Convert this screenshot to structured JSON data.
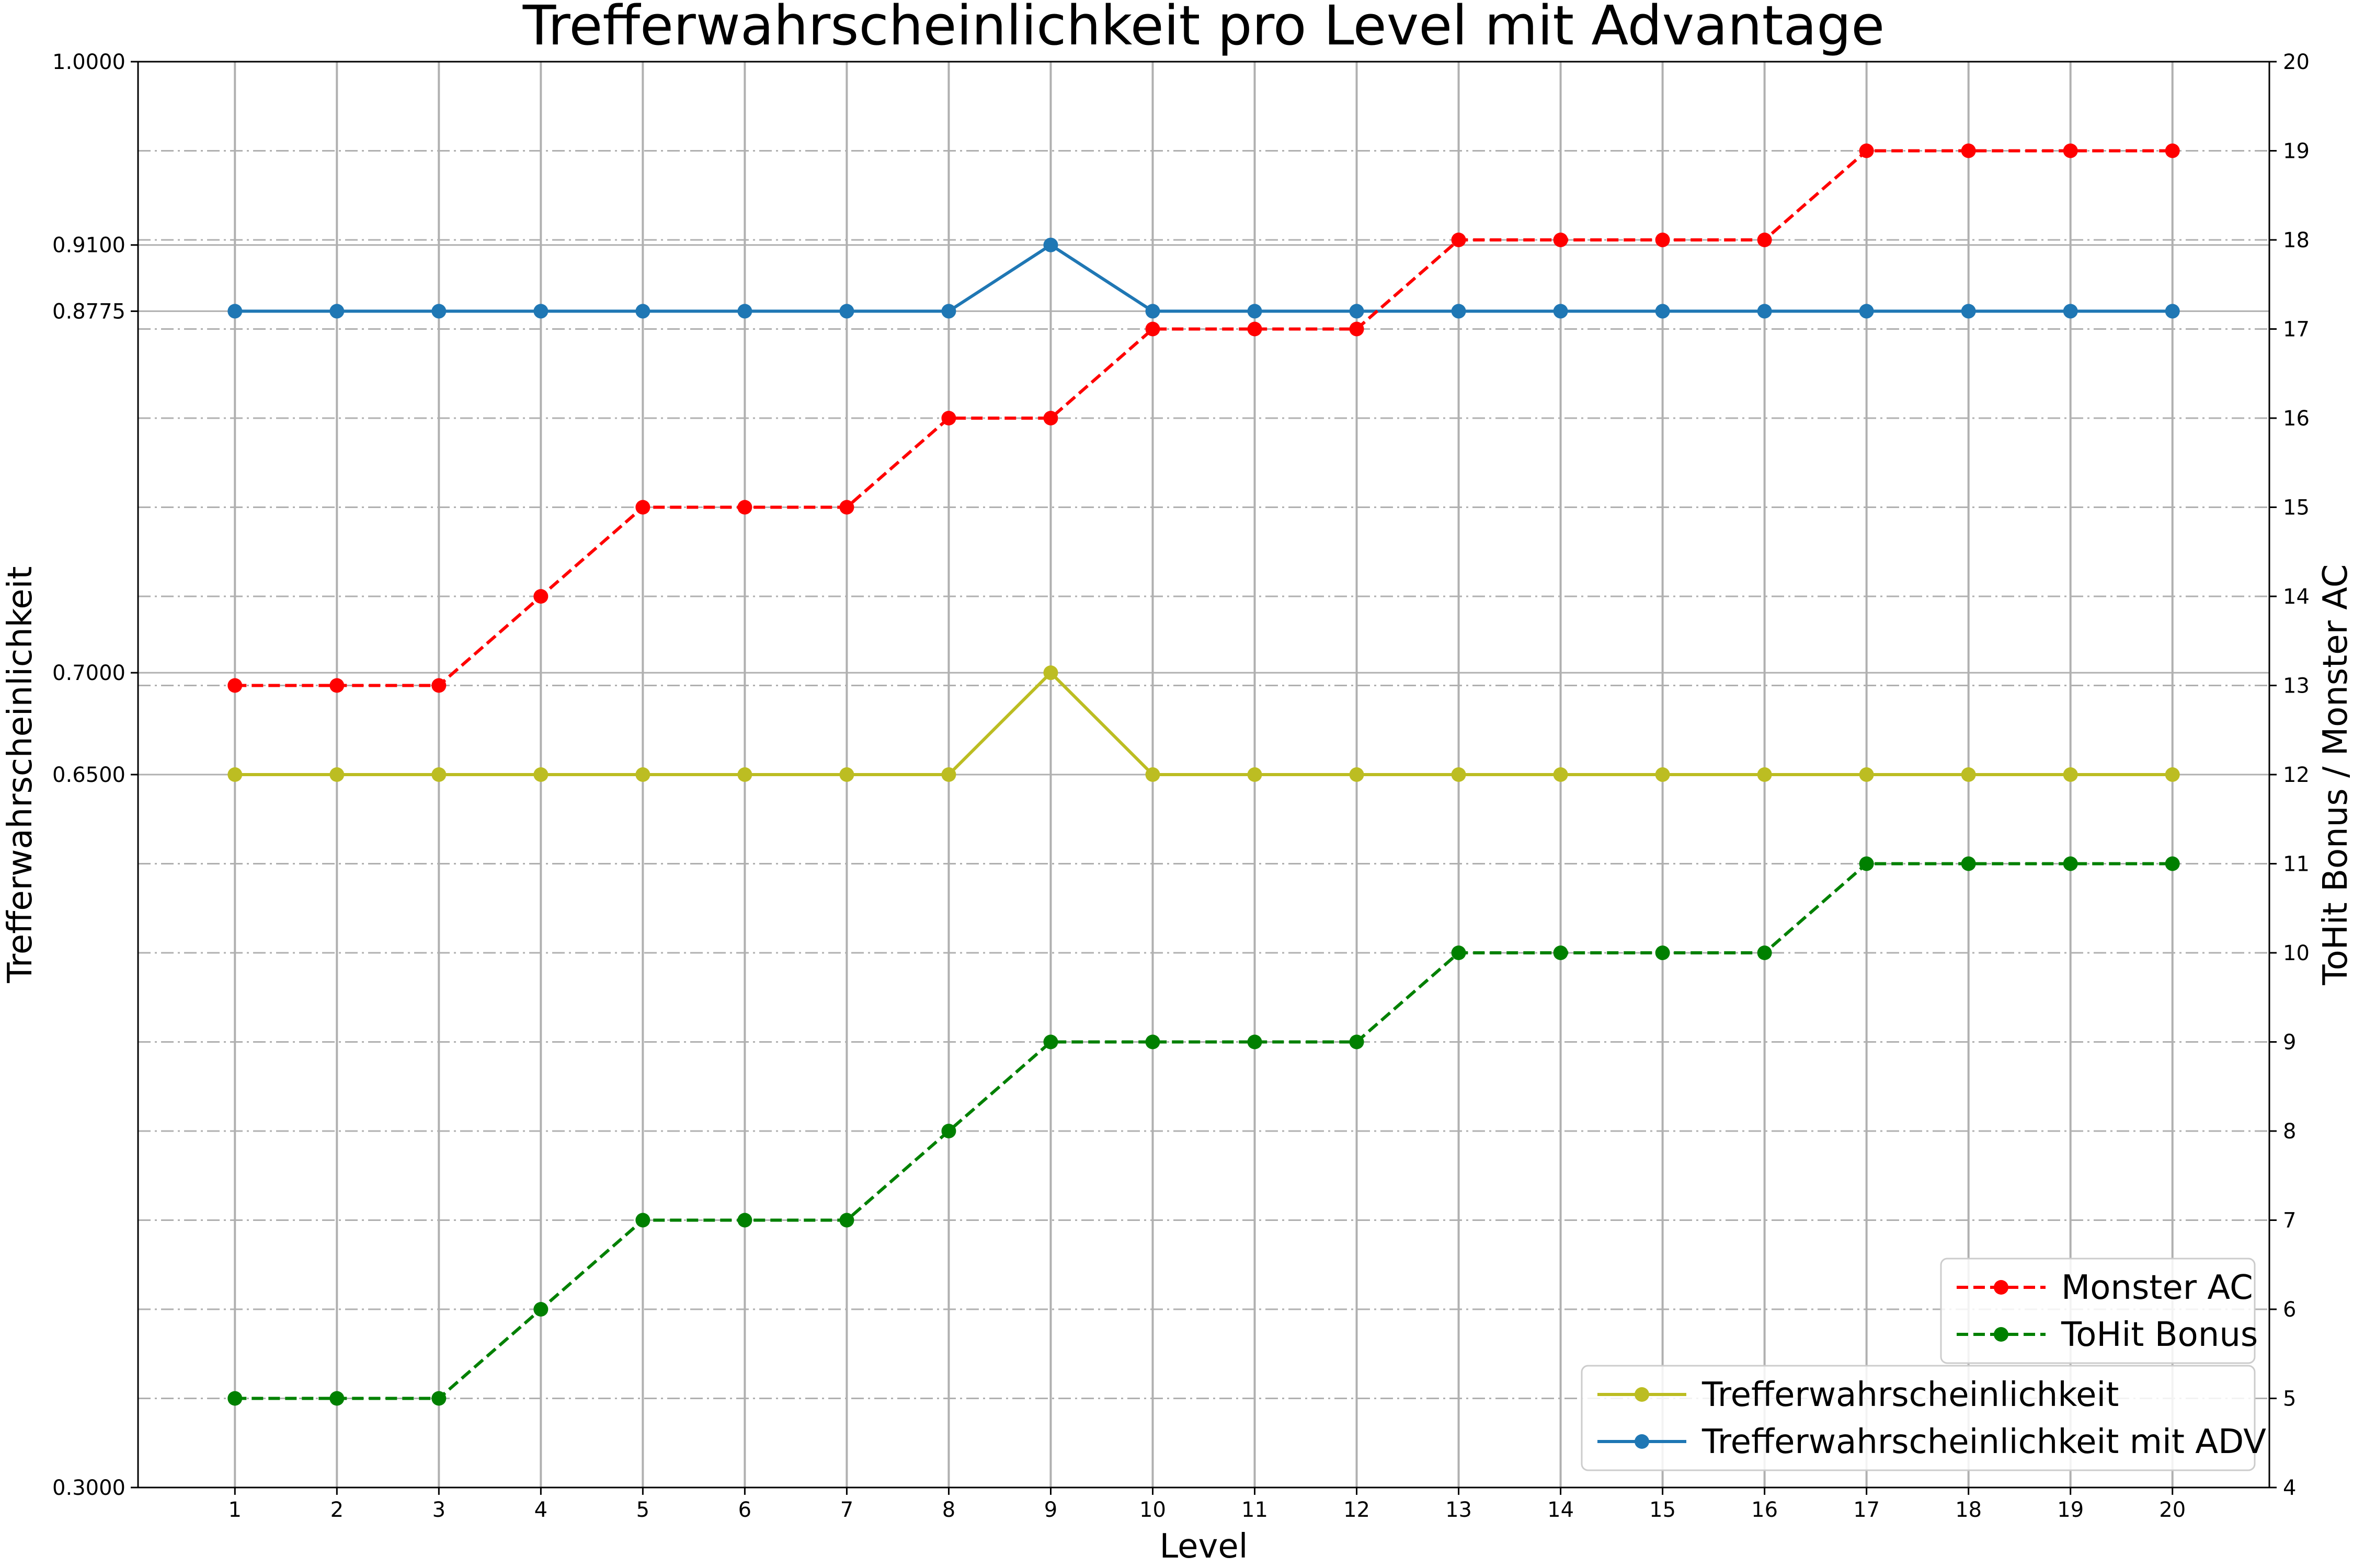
{
  "chart_data": {
    "type": "line",
    "title": "Trefferwahrscheinlichkeit pro Level mit Advantage",
    "xlabel": "Level",
    "ylabel_left": "Trefferwahrscheinlichkeit",
    "ylabel_right": "ToHit Bonus / Monster AC",
    "x": [
      1,
      2,
      3,
      4,
      5,
      6,
      7,
      8,
      9,
      10,
      11,
      12,
      13,
      14,
      15,
      16,
      17,
      18,
      19,
      20
    ],
    "x_tick_labels": [
      "1",
      "2",
      "3",
      "4",
      "5",
      "6",
      "7",
      "8",
      "9",
      "10",
      "11",
      "12",
      "13",
      "14",
      "15",
      "16",
      "17",
      "18",
      "19",
      "20"
    ],
    "ylim_left": [
      0.3,
      1.0
    ],
    "yticks_left": [
      0.3,
      0.65,
      0.7,
      0.8775,
      0.91,
      1.0
    ],
    "ytick_labels_left": [
      "0.3000",
      "0.6500",
      "0.7000",
      "0.8775",
      "0.9100",
      "1.0000"
    ],
    "ylim_right": [
      4,
      20
    ],
    "yticks_right": [
      4,
      5,
      6,
      7,
      8,
      9,
      10,
      11,
      12,
      13,
      14,
      15,
      16,
      17,
      18,
      19,
      20
    ],
    "ytick_labels_right": [
      "4",
      "5",
      "6",
      "7",
      "8",
      "9",
      "10",
      "11",
      "12",
      "13",
      "14",
      "15",
      "16",
      "17",
      "18",
      "19",
      "20"
    ],
    "grid": true,
    "series_left": [
      {
        "name": "Trefferwahrscheinlichkeit",
        "color": "#bcbd22",
        "style": "solid",
        "values": [
          0.65,
          0.65,
          0.65,
          0.65,
          0.65,
          0.65,
          0.65,
          0.65,
          0.7,
          0.65,
          0.65,
          0.65,
          0.65,
          0.65,
          0.65,
          0.65,
          0.65,
          0.65,
          0.65,
          0.65
        ]
      },
      {
        "name": "Trefferwahrscheinlichkeit mit ADV",
        "color": "#1f77b4",
        "style": "solid",
        "values": [
          0.8775,
          0.8775,
          0.8775,
          0.8775,
          0.8775,
          0.8775,
          0.8775,
          0.8775,
          0.91,
          0.8775,
          0.8775,
          0.8775,
          0.8775,
          0.8775,
          0.8775,
          0.8775,
          0.8775,
          0.8775,
          0.8775,
          0.8775
        ]
      }
    ],
    "series_right": [
      {
        "name": "Monster AC",
        "color": "#ff0000",
        "style": "dashed",
        "values": [
          13,
          13,
          13,
          14,
          15,
          15,
          15,
          16,
          16,
          17,
          17,
          17,
          18,
          18,
          18,
          18,
          19,
          19,
          19,
          19
        ]
      },
      {
        "name": "ToHit Bonus",
        "color": "#008000",
        "style": "dashed",
        "values": [
          5,
          5,
          5,
          6,
          7,
          7,
          7,
          8,
          9,
          9,
          9,
          9,
          10,
          10,
          10,
          10,
          11,
          11,
          11,
          11
        ]
      }
    ],
    "legend_right_position": "lower-right",
    "legend_left_position": "lower-right"
  }
}
